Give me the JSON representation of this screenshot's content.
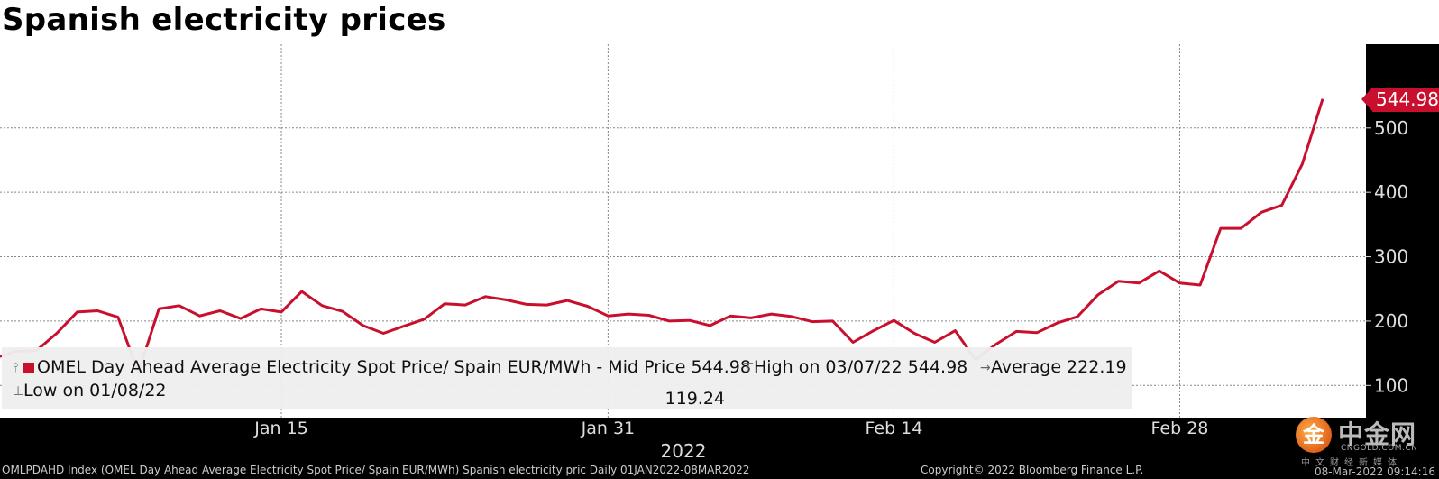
{
  "title": "Spanish electricity prices",
  "legend": {
    "series_label": "OMEL Day Ahead Average Electricity Spot Price/ Spain EUR/MWh - Mid Price 544.98",
    "high_label": "High on 03/07/22 544.98",
    "average_label": "Average 222.19",
    "low_label": "Low on 01/08/22",
    "low_value": "119.24"
  },
  "last_value_tag": "544.98",
  "year_label": "2022",
  "footer_left": "OMLPDAHD Index (OMEL Day Ahead Average Electricity Spot Price/ Spain EUR/MWh) Spanish electricity pric  Daily 01JAN2022-08MAR2022",
  "footer_right": "Copyright© 2022 Bloomberg Finance L.P.",
  "timestamp": "08-Mar-2022 09:14:16",
  "logo": {
    "text": "中金网",
    "sub": "CNGOLD.COM.CN",
    "tagline": "中文财经新媒体",
    "mark": "金"
  },
  "chart_data": {
    "type": "line",
    "series": [
      {
        "name": "OMEL Day Ahead Average Electricity Spot Price/ Spain EUR/MWh - Mid Price",
        "color": "#c8102e",
        "x": [
          "2022-01-01",
          "2022-01-02",
          "2022-01-03",
          "2022-01-04",
          "2022-01-05",
          "2022-01-06",
          "2022-01-07",
          "2022-01-08",
          "2022-01-09",
          "2022-01-10",
          "2022-01-11",
          "2022-01-12",
          "2022-01-13",
          "2022-01-14",
          "2022-01-15",
          "2022-01-16",
          "2022-01-17",
          "2022-01-18",
          "2022-01-19",
          "2022-01-20",
          "2022-01-21",
          "2022-01-22",
          "2022-01-23",
          "2022-01-24",
          "2022-01-25",
          "2022-01-26",
          "2022-01-27",
          "2022-01-28",
          "2022-01-29",
          "2022-01-30",
          "2022-01-31",
          "2022-02-01",
          "2022-02-02",
          "2022-02-03",
          "2022-02-04",
          "2022-02-05",
          "2022-02-06",
          "2022-02-07",
          "2022-02-08",
          "2022-02-09",
          "2022-02-10",
          "2022-02-11",
          "2022-02-12",
          "2022-02-13",
          "2022-02-14",
          "2022-02-15",
          "2022-02-16",
          "2022-02-17",
          "2022-02-18",
          "2022-02-19",
          "2022-02-20",
          "2022-02-21",
          "2022-02-22",
          "2022-02-23",
          "2022-02-24",
          "2022-02-25",
          "2022-02-26",
          "2022-02-27",
          "2022-02-28",
          "2022-03-01",
          "2022-03-02",
          "2022-03-03",
          "2022-03-04",
          "2022-03-05",
          "2022-03-06",
          "2022-03-07"
        ],
        "values": [
          143,
          153,
          154,
          181,
          214,
          216,
          206,
          120,
          219,
          224,
          208,
          216,
          204,
          219,
          214,
          246,
          224,
          215,
          193,
          181,
          192,
          203,
          227,
          225,
          238,
          233,
          226,
          225,
          232,
          223,
          208,
          211,
          209,
          200,
          201,
          193,
          208,
          205,
          211,
          207,
          199,
          200,
          167,
          185,
          201,
          181,
          167,
          185,
          140,
          164,
          184,
          182,
          197,
          207,
          241,
          262,
          259,
          278,
          259,
          256,
          344,
          344,
          369,
          380,
          444,
          544.98
        ]
      }
    ],
    "xticks": [
      {
        "label": "Jan 15",
        "x": "2022-01-15"
      },
      {
        "label": "Jan 31",
        "x": "2022-01-31"
      },
      {
        "label": "Feb 14",
        "x": "2022-02-14"
      },
      {
        "label": "Feb 28",
        "x": "2022-02-28"
      }
    ],
    "xlabel": "2022",
    "yticks": [
      100,
      200,
      300,
      400,
      500
    ],
    "ylim": [
      50,
      630
    ],
    "grid": true,
    "y_axis_side": "right",
    "last_value": 544.98
  }
}
